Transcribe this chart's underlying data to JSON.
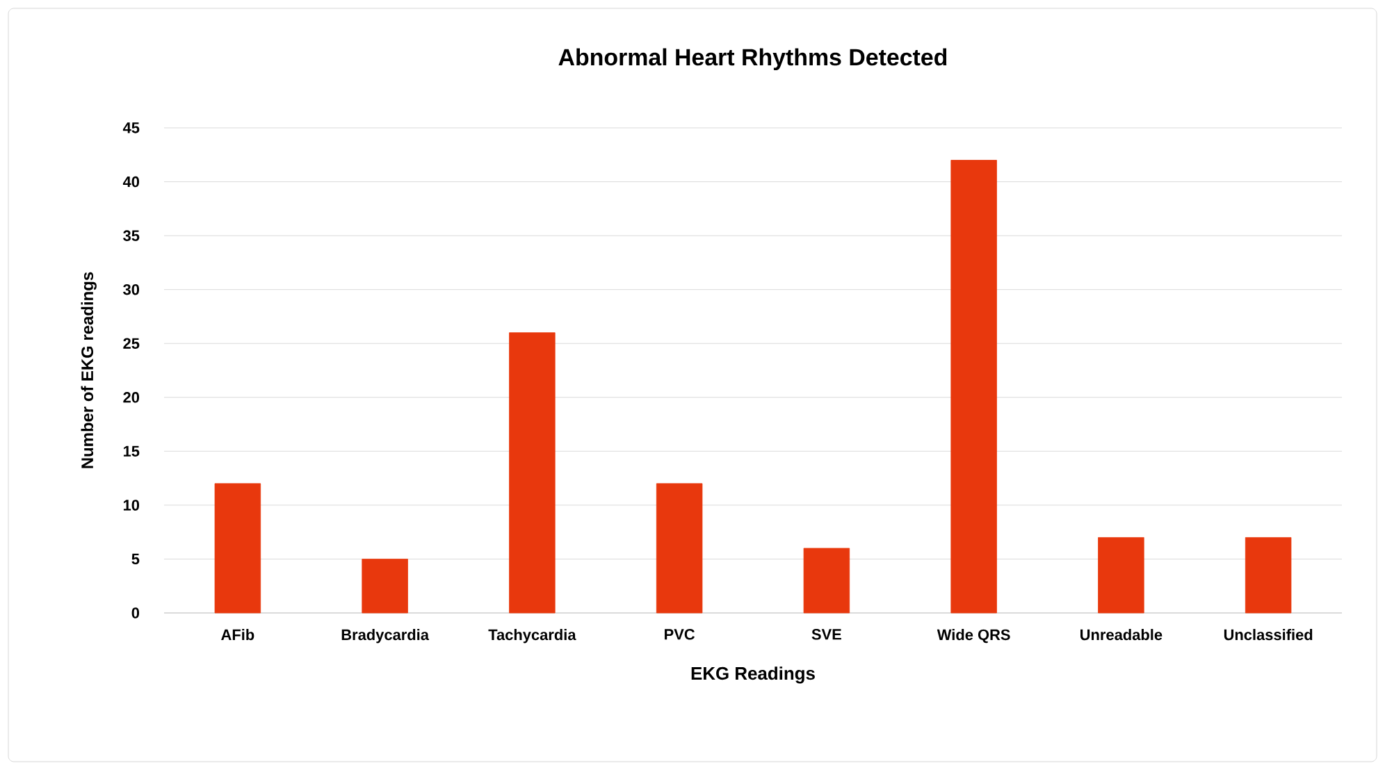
{
  "chart_data": {
    "type": "bar",
    "title": "Abnormal Heart Rhythms Detected",
    "xlabel": "EKG Readings",
    "ylabel": "Number of EKG readings",
    "categories": [
      "AFib",
      "Bradycardia",
      "Tachycardia",
      "PVC",
      "SVE",
      "Wide QRS",
      "Unreadable",
      "Unclassified"
    ],
    "values": [
      12,
      5,
      26,
      12,
      6,
      42,
      7,
      7
    ],
    "color": "#e8380d",
    "ylim": [
      0,
      45
    ],
    "yticks": [
      0,
      5,
      10,
      15,
      20,
      25,
      30,
      35,
      40,
      45
    ],
    "grid": "y"
  }
}
